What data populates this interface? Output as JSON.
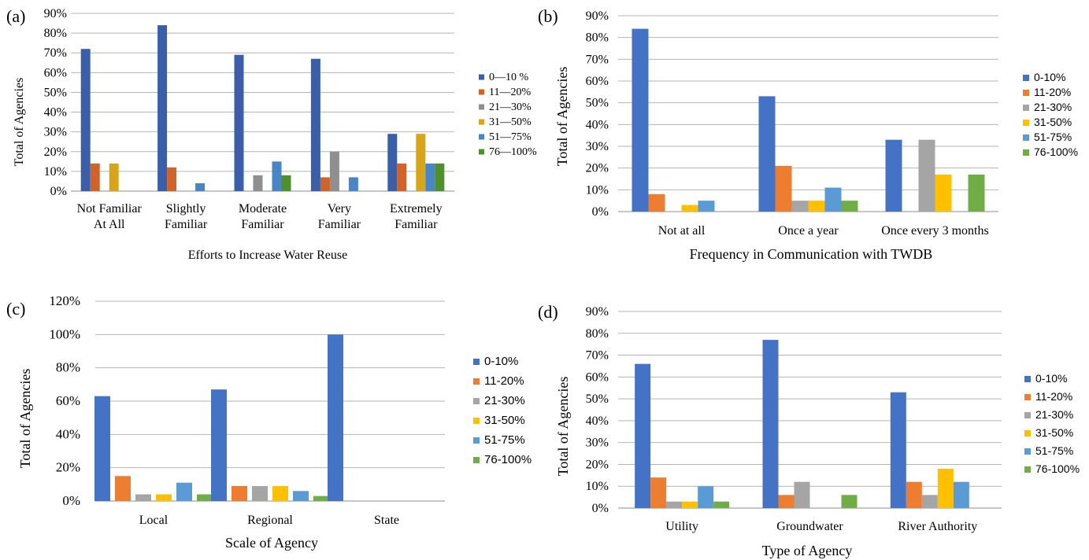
{
  "chart_data": [
    {
      "panel_label": "(a)",
      "type": "bar",
      "title": "",
      "xlabel": "Efforts to Increase Water Reuse",
      "ylabel": "Total of Agencies",
      "categories": [
        "Not Familiar\nAt All",
        "Slightly\nFamiliar",
        "Moderate\nFamiliar",
        "Very\nFamiliar",
        "Extremely\nFamiliar"
      ],
      "yticks": [
        "0%",
        "10%",
        "20%",
        "30%",
        "40%",
        "50%",
        "60%",
        "70%",
        "80%",
        "90%"
      ],
      "ylim": [
        0,
        90
      ],
      "grid": true,
      "legend_position": "right",
      "series": [
        {
          "name": "0—10 %",
          "color": "#3a5fa8",
          "values": [
            72,
            84,
            69,
            67,
            29
          ]
        },
        {
          "name": "11—20%",
          "color": "#d0632a",
          "values": [
            14,
            12,
            0,
            7,
            14
          ]
        },
        {
          "name": "21—30%",
          "color": "#8f8f8f",
          "values": [
            0,
            0,
            8,
            20,
            0
          ]
        },
        {
          "name": "31—50%",
          "color": "#d6a51c",
          "values": [
            14,
            0,
            0,
            0,
            29
          ]
        },
        {
          "name": "51—75%",
          "color": "#4a86c5",
          "values": [
            0,
            4,
            15,
            7,
            14
          ]
        },
        {
          "name": "76—100%",
          "color": "#4e8f2e",
          "values": [
            0,
            0,
            8,
            0,
            14
          ]
        }
      ]
    },
    {
      "panel_label": "(b)",
      "type": "bar",
      "title": "",
      "xlabel": "Frequency in Communication with TWDB",
      "ylabel": "Total of Agencies",
      "categories": [
        "Not at all",
        "Once a year",
        "Once every 3 months"
      ],
      "yticks": [
        "0%",
        "10%",
        "20%",
        "30%",
        "40%",
        "50%",
        "60%",
        "70%",
        "80%",
        "90%"
      ],
      "ylim": [
        0,
        90
      ],
      "grid": true,
      "legend_position": "right",
      "series": [
        {
          "name": "0-10%",
          "color": "#4472c4",
          "values": [
            84,
            53,
            33
          ]
        },
        {
          "name": "11-20%",
          "color": "#ed7d31",
          "values": [
            8,
            21,
            0
          ]
        },
        {
          "name": "21-30%",
          "color": "#a5a5a5",
          "values": [
            0,
            5,
            33
          ]
        },
        {
          "name": "31-50%",
          "color": "#ffc000",
          "values": [
            3,
            5,
            17
          ]
        },
        {
          "name": "51-75%",
          "color": "#5b9bd5",
          "values": [
            5,
            11,
            0
          ]
        },
        {
          "name": "76-100%",
          "color": "#70ad47",
          "values": [
            0,
            5,
            17
          ]
        }
      ]
    },
    {
      "panel_label": "(c)",
      "type": "bar",
      "title": "",
      "xlabel": "Scale of Agency",
      "ylabel": "Total of Agencies",
      "categories": [
        "Local",
        "Regional",
        "State"
      ],
      "yticks": [
        "0%",
        "20%",
        "40%",
        "60%",
        "80%",
        "100%",
        "120%"
      ],
      "ylim": [
        0,
        120
      ],
      "grid": true,
      "legend_position": "right",
      "series": [
        {
          "name": "0-10%",
          "color": "#4472c4",
          "values": [
            63,
            67,
            100
          ]
        },
        {
          "name": "11-20%",
          "color": "#ed7d31",
          "values": [
            15,
            9,
            0
          ]
        },
        {
          "name": "21-30%",
          "color": "#a5a5a5",
          "values": [
            4,
            9,
            0
          ]
        },
        {
          "name": "31-50%",
          "color": "#ffc000",
          "values": [
            4,
            9,
            0
          ]
        },
        {
          "name": "51-75%",
          "color": "#5b9bd5",
          "values": [
            11,
            6,
            0
          ]
        },
        {
          "name": "76-100%",
          "color": "#70ad47",
          "values": [
            4,
            3,
            0
          ]
        }
      ]
    },
    {
      "panel_label": "(d)",
      "type": "bar",
      "title": "",
      "xlabel": "Type of Agency",
      "ylabel": "Total of Agencies",
      "categories": [
        "Utility",
        "Groundwater",
        "River Authority"
      ],
      "yticks": [
        "0%",
        "10%",
        "20%",
        "30%",
        "40%",
        "50%",
        "60%",
        "70%",
        "80%",
        "90%"
      ],
      "ylim": [
        0,
        90
      ],
      "grid": true,
      "legend_position": "right",
      "series": [
        {
          "name": "0-10%",
          "color": "#4472c4",
          "values": [
            66,
            77,
            53
          ]
        },
        {
          "name": "11-20%",
          "color": "#ed7d31",
          "values": [
            14,
            6,
            12
          ]
        },
        {
          "name": "21-30%",
          "color": "#a5a5a5",
          "values": [
            3,
            12,
            6
          ]
        },
        {
          "name": "31-50%",
          "color": "#ffc000",
          "values": [
            3,
            0,
            18
          ]
        },
        {
          "name": "51-75%",
          "color": "#5b9bd5",
          "values": [
            10,
            0,
            12
          ]
        },
        {
          "name": "76-100%",
          "color": "#70ad47",
          "values": [
            3,
            6,
            0
          ]
        }
      ]
    }
  ]
}
